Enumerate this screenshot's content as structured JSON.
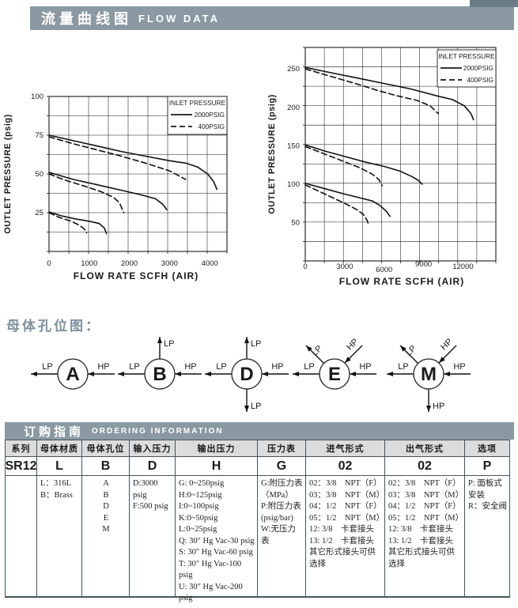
{
  "header": {
    "title_zh": "流量曲线图",
    "title_en": "FLOW DATA"
  },
  "sections": {
    "holes_title": "母体孔位图："
  },
  "colors": {
    "band": "#8a99a2",
    "band_dark": "#6b7b85",
    "table_header_bg": "#dcdcdc",
    "border": "#44565e",
    "ink": "#1a1a1a",
    "section_title": "#7e929d"
  },
  "chart_data": [
    {
      "type": "line",
      "title": "",
      "xlabel": "FLOW RATE SCFH (AIR)",
      "ylabel": "OUTLET PRESSURE (psig)",
      "xlim": [
        0,
        4430
      ],
      "ylim": [
        0,
        100
      ],
      "xticks": [
        0,
        1000,
        2000,
        3000,
        4000
      ],
      "yticks": [
        25,
        50,
        75,
        100
      ],
      "grid": {
        "cols": 9,
        "rows": 8,
        "on": true
      },
      "legend": {
        "title": "INLET PRESSURE",
        "position": "top-right",
        "entries": [
          {
            "label": "2000PSIG",
            "style": "solid"
          },
          {
            "label": "400PSIG",
            "style": "dashed"
          }
        ]
      },
      "series": [
        {
          "name": "2000PSIG set 75 psig",
          "style": "solid",
          "points": [
            [
              0,
              75
            ],
            [
              600,
              71.5
            ],
            [
              1200,
              68
            ],
            [
              1800,
              64.5
            ],
            [
              2400,
              61.5
            ],
            [
              3000,
              58.5
            ],
            [
              3400,
              57
            ],
            [
              3700,
              54.5
            ],
            [
              3950,
              50
            ],
            [
              4100,
              45
            ],
            [
              4180,
              40
            ]
          ]
        },
        {
          "name": "400PSIG set 75 psig",
          "style": "dashed",
          "points": [
            [
              0,
              74
            ],
            [
              600,
              69.5
            ],
            [
              1200,
              65.5
            ],
            [
              1800,
              61.5
            ],
            [
              2400,
              57
            ],
            [
              3000,
              52
            ],
            [
              3400,
              46.5
            ]
          ]
        },
        {
          "name": "2000PSIG set 50 psig",
          "style": "solid",
          "points": [
            [
              0,
              51
            ],
            [
              600,
              46.5
            ],
            [
              1200,
              43
            ],
            [
              1800,
              39.5
            ],
            [
              2300,
              36.5
            ],
            [
              2650,
              34
            ],
            [
              2830,
              30.5
            ],
            [
              2930,
              27
            ]
          ]
        },
        {
          "name": "400PSIG set 50 psig",
          "style": "dashed",
          "points": [
            [
              0,
              50
            ],
            [
              400,
              46
            ],
            [
              900,
              42
            ],
            [
              1300,
              38.5
            ],
            [
              1600,
              35
            ],
            [
              1750,
              31.5
            ],
            [
              1830,
              27
            ],
            [
              1860,
              25
            ]
          ]
        },
        {
          "name": "2000PSIG set 25 psig",
          "style": "solid",
          "points": [
            [
              0,
              25.5
            ],
            [
              300,
              23
            ],
            [
              650,
              21
            ],
            [
              1000,
              19.5
            ],
            [
              1250,
              18
            ],
            [
              1380,
              15
            ],
            [
              1430,
              11.5
            ]
          ]
        },
        {
          "name": "400PSIG set 25 psig",
          "style": "dashed",
          "points": [
            [
              0,
              25
            ],
            [
              250,
              22
            ],
            [
              550,
              19.5
            ],
            [
              750,
              17
            ],
            [
              880,
              14.5
            ],
            [
              935,
              12
            ]
          ]
        }
      ]
    },
    {
      "type": "line",
      "title": "",
      "xlabel": "FLOW RATE SCFH (AIR)",
      "ylabel": "OUTLET PRESSURE (psig)",
      "xlim": [
        0,
        14500
      ],
      "ylim": [
        0,
        278
      ],
      "xticks": [
        0,
        3000,
        6000,
        9000,
        12000
      ],
      "yticks": [
        50,
        100,
        150,
        200,
        250
      ],
      "grid": {
        "cols": 10,
        "rows": 11,
        "on": true
      },
      "legend": {
        "title": "INLET PRESSURE",
        "position": "top-right",
        "entries": [
          {
            "label": "2000PSIG",
            "style": "solid"
          },
          {
            "label": "400PSIG",
            "style": "dashed"
          }
        ]
      },
      "series": [
        {
          "name": "2000PSIG set 250 psig",
          "style": "solid",
          "points": [
            [
              0,
              252
            ],
            [
              2000,
              245
            ],
            [
              4000,
              238
            ],
            [
              6000,
              231
            ],
            [
              8000,
              224
            ],
            [
              10000,
              215
            ],
            [
              11200,
              210
            ],
            [
              12100,
              202
            ],
            [
              12600,
              192
            ],
            [
              12800,
              184
            ]
          ]
        },
        {
          "name": "400PSIG set 250 psig",
          "style": "dashed",
          "points": [
            [
              0,
              250
            ],
            [
              2000,
              240
            ],
            [
              4000,
              230
            ],
            [
              5500,
              222
            ],
            [
              7000,
              215
            ],
            [
              8500,
              209
            ],
            [
              9500,
              202
            ],
            [
              10100,
              192
            ]
          ]
        },
        {
          "name": "2000PSIG set 150 psig",
          "style": "solid",
          "points": [
            [
              0,
              151
            ],
            [
              1500,
              143
            ],
            [
              3000,
              136
            ],
            [
              4500,
              129
            ],
            [
              6000,
              123
            ],
            [
              7200,
              117
            ],
            [
              8100,
              110
            ],
            [
              8600,
              105
            ],
            [
              8900,
              100
            ]
          ]
        },
        {
          "name": "400PSIG set 150 psig",
          "style": "dashed",
          "points": [
            [
              0,
              149
            ],
            [
              1500,
              139
            ],
            [
              3000,
              129
            ],
            [
              4200,
              121
            ],
            [
              5100,
              113
            ],
            [
              5600,
              106
            ],
            [
              5850,
              98
            ]
          ]
        },
        {
          "name": "2000PSIG set 100 psig",
          "style": "solid",
          "points": [
            [
              0,
              101
            ],
            [
              1500,
              94
            ],
            [
              3000,
              87
            ],
            [
              4200,
              82
            ],
            [
              5100,
              78
            ],
            [
              5700,
              72
            ],
            [
              6200,
              64
            ],
            [
              6450,
              58
            ]
          ]
        },
        {
          "name": "400PSIG set 100 psig",
          "style": "dashed",
          "points": [
            [
              0,
              99
            ],
            [
              1000,
              91
            ],
            [
              2000,
              83
            ],
            [
              3000,
              75
            ],
            [
              3900,
              67
            ],
            [
              4400,
              61
            ],
            [
              4700,
              53
            ],
            [
              4800,
              48
            ]
          ]
        }
      ]
    }
  ],
  "hole_diagrams": [
    {
      "letter": "A",
      "ports": [
        {
          "type": "left-out",
          "label": "LP"
        },
        {
          "type": "right-in",
          "label": "HP"
        }
      ]
    },
    {
      "letter": "B",
      "ports": [
        {
          "type": "up-out",
          "label": "LP"
        },
        {
          "type": "left-out",
          "label": "LP"
        },
        {
          "type": "right-in",
          "label": "HP"
        }
      ]
    },
    {
      "letter": "D",
      "ports": [
        {
          "type": "up-out",
          "label": "LP"
        },
        {
          "type": "left-out",
          "label": "LP"
        },
        {
          "type": "right-in",
          "label": "HP"
        },
        {
          "type": "down-out",
          "label": "LP"
        }
      ]
    },
    {
      "letter": "E",
      "ports": [
        {
          "type": "diag-ul-out",
          "label": "LP"
        },
        {
          "type": "diag-ur-in",
          "label": "HP"
        },
        {
          "type": "left-out",
          "label": "LP"
        },
        {
          "type": "right-in",
          "label": "HP"
        }
      ]
    },
    {
      "letter": "M",
      "ports": [
        {
          "type": "diag-ul-out",
          "label": "LP"
        },
        {
          "type": "diag-ur-in",
          "label": "HP"
        },
        {
          "type": "left-out",
          "label": "LP"
        },
        {
          "type": "right-in",
          "label": "HP"
        },
        {
          "type": "down-out",
          "label": "HP"
        }
      ]
    }
  ],
  "ordering": {
    "title_zh": "订购指南",
    "title_en": "ORDERING INFORMATION",
    "columns": [
      {
        "header": "系列",
        "code": "SR12",
        "lines": []
      },
      {
        "header": "母体材质",
        "code": "L",
        "lines": [
          "L：316L",
          "B：Brass"
        ]
      },
      {
        "header": "母体孔位",
        "code": "B",
        "lines": [
          "A",
          "B",
          "D",
          "E",
          "M"
        ]
      },
      {
        "header": "输入压力",
        "code": "D",
        "lines": [
          "D:3000 psig",
          "F:500 psig"
        ]
      },
      {
        "header": "输出压力",
        "code": "H",
        "lines": [
          "G: 0~250psig",
          "H:0~125psig",
          "I:0~100psig",
          "K:0~50psig",
          "L:0~25psig",
          "Q: 30\" Hg Vac-30 psig",
          "S: 30\" Hg Vac-60 psig",
          "T: 30\" Hg Vac-100 psig",
          "U: 30\" Hg Vac-200 psig"
        ]
      },
      {
        "header": "压力表",
        "code": "G",
        "lines": [
          "G:附压力表",
          "（MPa）",
          "P:附压力表",
          "(psig/bar)",
          "W:无压力表"
        ]
      },
      {
        "header": "进气形式",
        "code": "02",
        "lines": [
          "02：3/8　NPT（F）",
          "03：3/8　NPT（M）",
          "04：1/2　NPT（F）",
          "05：1/2　NPT（M）",
          "12: 3/8　卡套接头",
          "13: 1/2　卡套接头",
          "其它形式接头可供选择"
        ]
      },
      {
        "header": "出气形式",
        "code": "02",
        "lines": [
          "02：3/8　NPT（F）",
          "03：3/8　NPT（M）",
          "04：1/2　NPT（F）",
          "05：1/2　NPT（M）",
          "12: 3/8　卡套接头",
          "13: 1/2　卡套接头",
          "其它形式接头可供选择"
        ]
      },
      {
        "header": "选项",
        "code": "P",
        "lines": [
          "P: 面板式安装",
          "R：安全阀"
        ]
      }
    ]
  }
}
